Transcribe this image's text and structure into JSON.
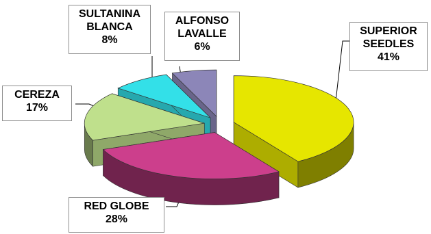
{
  "chart_data": {
    "type": "pie",
    "style": "3d-exploded",
    "title": "",
    "legend": "none",
    "slices": [
      {
        "name": "SUPERIOR SEEDLES",
        "name_lines": [
          "SUPERIOR",
          "SEEDLES"
        ],
        "value": 41,
        "label": "41%",
        "color": "#e6e600"
      },
      {
        "name": "RED GLOBE",
        "name_lines": [
          "RED GLOBE"
        ],
        "value": 28,
        "label": "28%",
        "color": "#cc3f8c"
      },
      {
        "name": "CEREZA",
        "name_lines": [
          "CEREZA"
        ],
        "value": 17,
        "label": "17%",
        "color": "#bfe08c"
      },
      {
        "name": "SULTANINA BLANCA",
        "name_lines": [
          "SULTANINA",
          "BLANCA"
        ],
        "value": 8,
        "label": "8%",
        "color": "#33e0e8"
      },
      {
        "name": "ALFONSO LAVALLE",
        "name_lines": [
          "ALFONSO",
          "LAVALLE"
        ],
        "value": 6,
        "label": "6%",
        "color": "#8c86b8"
      }
    ]
  }
}
